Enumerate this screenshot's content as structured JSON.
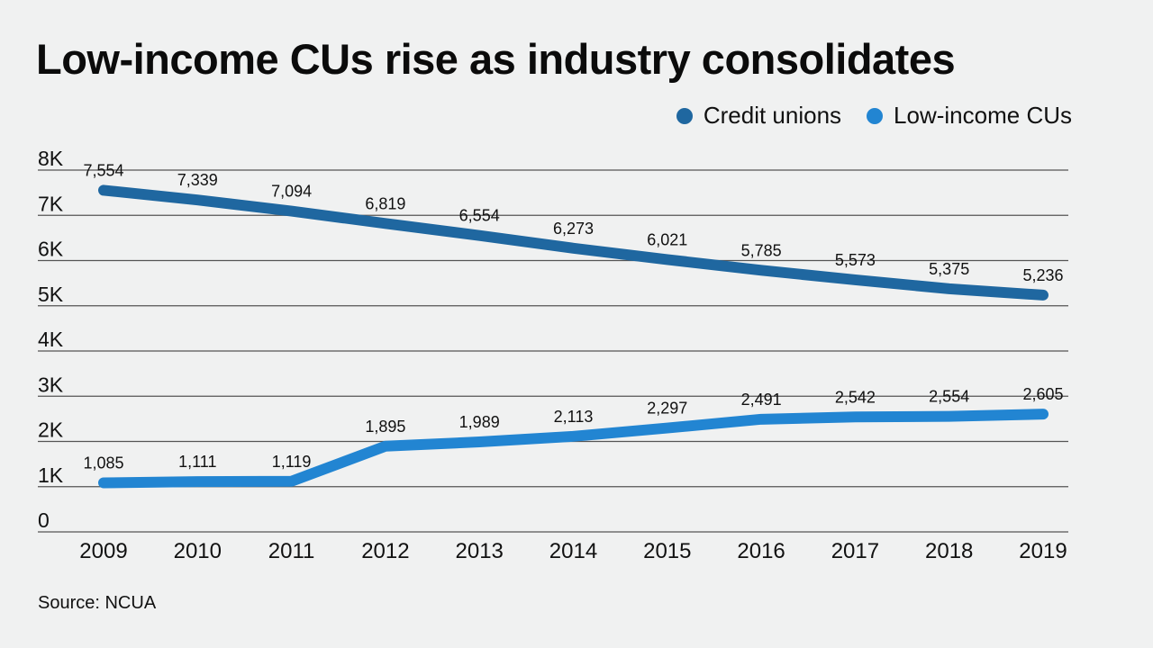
{
  "chart_data": {
    "type": "line",
    "title": "Low-income CUs rise as industry consolidates",
    "xlabel": "",
    "ylabel": "",
    "x": [
      "2009",
      "2010",
      "2011",
      "2012",
      "2013",
      "2014",
      "2015",
      "2016",
      "2017",
      "2018",
      "2019"
    ],
    "ylim": [
      0,
      8000
    ],
    "yticks": [
      0,
      1000,
      2000,
      3000,
      4000,
      5000,
      6000,
      7000,
      8000
    ],
    "ytick_labels": [
      "0",
      "1K",
      "2K",
      "3K",
      "4K",
      "5K",
      "6K",
      "7K",
      "8K"
    ],
    "grid": true,
    "legend_position": "top-right",
    "series": [
      {
        "name": "Credit unions",
        "color": "#1f67a0",
        "values": [
          7554,
          7339,
          7094,
          6819,
          6554,
          6273,
          6021,
          5785,
          5573,
          5375,
          5236
        ],
        "labels": [
          "7,554",
          "7,339",
          "7,094",
          "6,819",
          "6,554",
          "6,273",
          "6,021",
          "5,785",
          "5,573",
          "5,375",
          "5,236"
        ]
      },
      {
        "name": "Low-income CUs",
        "color": "#2285d2",
        "values": [
          1085,
          1111,
          1119,
          1895,
          1989,
          2113,
          2297,
          2491,
          2542,
          2554,
          2605
        ],
        "labels": [
          "1,085",
          "1,111",
          "1,119",
          "1,895",
          "1,989",
          "2,113",
          "2,297",
          "2,491",
          "2,542",
          "2,554",
          "2,605"
        ]
      }
    ],
    "source": "Source: NCUA"
  }
}
